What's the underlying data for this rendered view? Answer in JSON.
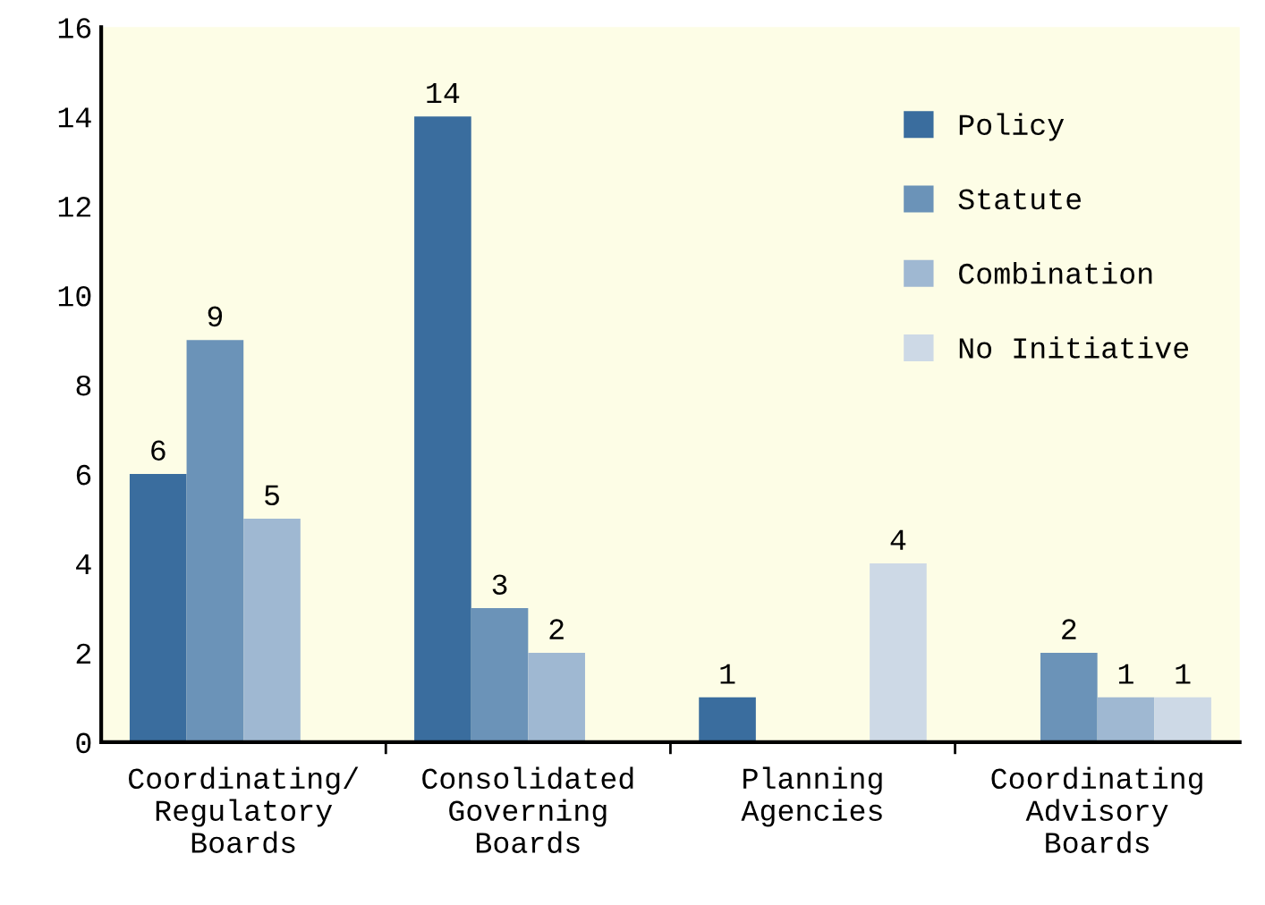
{
  "chart_data": {
    "type": "bar",
    "categories": [
      "Coordinating/\nRegulatory\nBoards",
      "Consolidated\nGoverning\nBoards",
      "Planning\nAgencies",
      "Coordinating\nAdvisory\nBoards"
    ],
    "series": [
      {
        "name": "Policy",
        "color": "#3a6d9e",
        "values": [
          6,
          14,
          1,
          null
        ]
      },
      {
        "name": "Statute",
        "color": "#6b93b8",
        "values": [
          9,
          3,
          null,
          2
        ]
      },
      {
        "name": "Combination",
        "color": "#9fb8d2",
        "values": [
          5,
          2,
          null,
          1
        ]
      },
      {
        "name": "No Initiative",
        "color": "#cdd9e6",
        "values": [
          null,
          null,
          4,
          1
        ]
      }
    ],
    "ylim": [
      0,
      16
    ],
    "yticks": [
      0,
      2,
      4,
      6,
      8,
      10,
      12,
      14,
      16
    ],
    "data_labels": true,
    "legend": "top right",
    "grid": false
  }
}
